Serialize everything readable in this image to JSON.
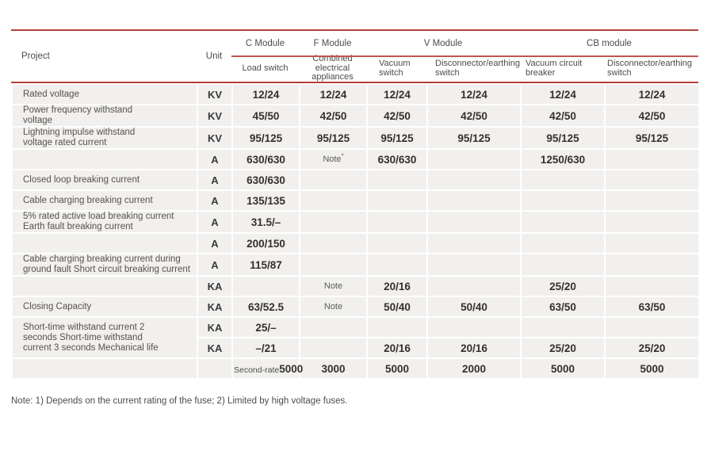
{
  "table": {
    "header": {
      "project": "Project",
      "unit": "Unit",
      "groups": [
        {
          "label": "C Module"
        },
        {
          "label": "F Module"
        },
        {
          "label": "V Module"
        },
        {
          "label": "CB module"
        }
      ],
      "columns": [
        "Load switch",
        "Combined electrical appliances",
        "Vacuum switch",
        "Disconnector/earthing switch",
        "Vacuum circuit breaker",
        "Disconnector/earthing switch"
      ]
    },
    "rows": [
      {
        "project": "Rated voltage",
        "unit": "KV",
        "values": [
          "12/24",
          "12/24",
          "12/24",
          "12/24",
          "12/24",
          "12/24"
        ]
      },
      {
        "project": "Power frequency withstand\nvoltage",
        "unit": "KV",
        "values": [
          "45/50",
          "42/50",
          "42/50",
          "42/50",
          "42/50",
          "42/50"
        ]
      },
      {
        "project": "Lightning impulse withstand\nvoltage rated current",
        "unit": "KV",
        "values": [
          "95/125",
          "95/125",
          "95/125",
          "95/125",
          "95/125",
          "95/125"
        ]
      },
      {
        "project": "",
        "unit": "A",
        "values": [
          "630/630",
          {
            "text": "Note",
            "sup": "*",
            "small": true
          },
          "630/630",
          "",
          "1250/630",
          ""
        ]
      },
      {
        "project": "Closed loop breaking current",
        "unit": "A",
        "values": [
          "630/630",
          "",
          "",
          "",
          "",
          ""
        ]
      },
      {
        "project": "Cable charging breaking current",
        "unit": "A",
        "values": [
          "135/135",
          "",
          "",
          "",
          "",
          ""
        ]
      },
      {
        "project": "5% rated active load breaking current\nEarth fault breaking current",
        "unit": "A",
        "values": [
          "31.5/–",
          "",
          "",
          "",
          "",
          ""
        ]
      },
      {
        "project": "",
        "unit": "A",
        "values": [
          "200/150",
          "",
          "",
          "",
          "",
          ""
        ]
      },
      {
        "project": "Cable charging breaking current during\nground fault Short circuit breaking current",
        "unit": "A",
        "values": [
          "115/87",
          "",
          "",
          "",
          "",
          ""
        ]
      },
      {
        "project": "",
        "unit": "KA",
        "values": [
          "",
          {
            "text": "Note",
            "small": true
          },
          "20/16",
          "",
          "25/20",
          ""
        ]
      },
      {
        "project": "Closing Capacity",
        "unit": "KA",
        "values": [
          "63/52.5",
          {
            "text": "Note",
            "small": true
          },
          "50/40",
          "50/40",
          "63/50",
          "63/50"
        ]
      },
      {
        "project": "Short-time withstand current 2\nseconds Short-time withstand\ncurrent 3 seconds Mechanical life",
        "unit": "KA",
        "project_rowspan": 2,
        "values": [
          "25/–",
          "",
          "",
          "",
          "",
          ""
        ]
      },
      {
        "project": null,
        "unit": "KA",
        "values": [
          "–/21",
          "",
          "20/16",
          "20/16",
          "25/20",
          "25/20"
        ]
      },
      {
        "project": "",
        "unit": "",
        "values": [
          {
            "prefix": "Second-rate",
            "text": "5000"
          },
          "3000",
          "5000",
          "2000",
          "5000",
          "5000"
        ]
      }
    ],
    "footnote": "Note: 1) Depends on the current rating of the fuse; 2) Limited by high voltage fuses."
  },
  "colors": {
    "rule_red": "#b0423d",
    "cell_background": "#f1f0ee",
    "page_background": "#ffffff"
  }
}
